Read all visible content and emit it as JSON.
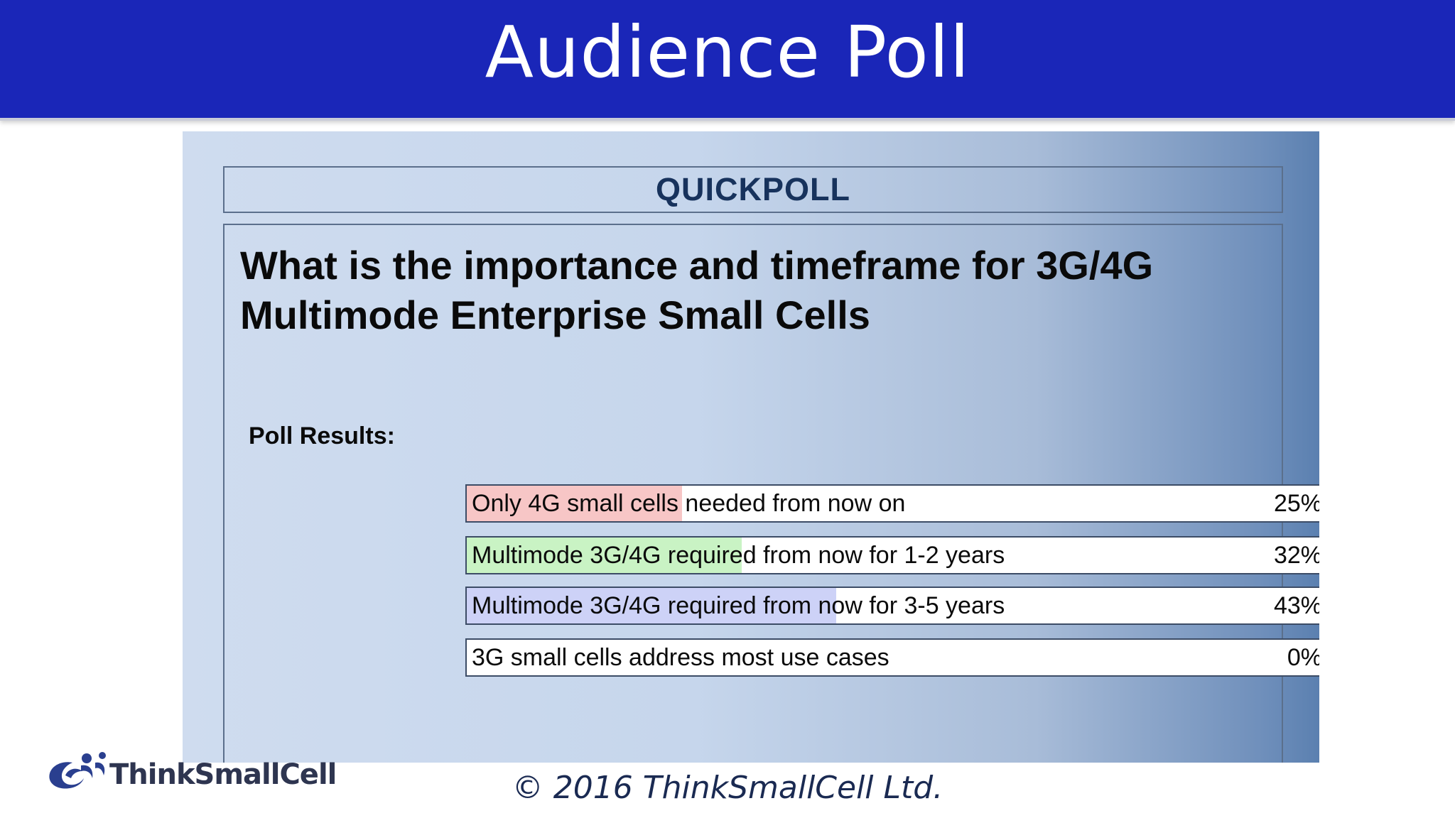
{
  "header": {
    "title": "Audience Poll"
  },
  "poll": {
    "heading": "QUICKPOLL",
    "question": "What is the importance and timeframe for 3G/4G Multimode Enterprise Small Cells",
    "results_label": "Poll Results:",
    "answers": [
      {
        "label": "Only 4G small cells needed from now on",
        "percent_text": "25%",
        "fraction": 0.25,
        "color": "#f7c6c6"
      },
      {
        "label": "Multimode 3G/4G required from now for 1-2 years",
        "percent_text": "32%",
        "fraction": 0.32,
        "color": "#c9f3c4"
      },
      {
        "label": "Multimode 3G/4G required from now for 3-5 years",
        "percent_text": "43%",
        "fraction": 0.43,
        "color": "#cdd2f7"
      },
      {
        "label": "3G small cells address most use cases",
        "percent_text": "0%",
        "fraction": 0.0,
        "color": "#ffffff"
      }
    ]
  },
  "footer": {
    "logo_text": "ThinkSmallCell",
    "copyright": "© 2016 ThinkSmallCell Ltd."
  }
}
